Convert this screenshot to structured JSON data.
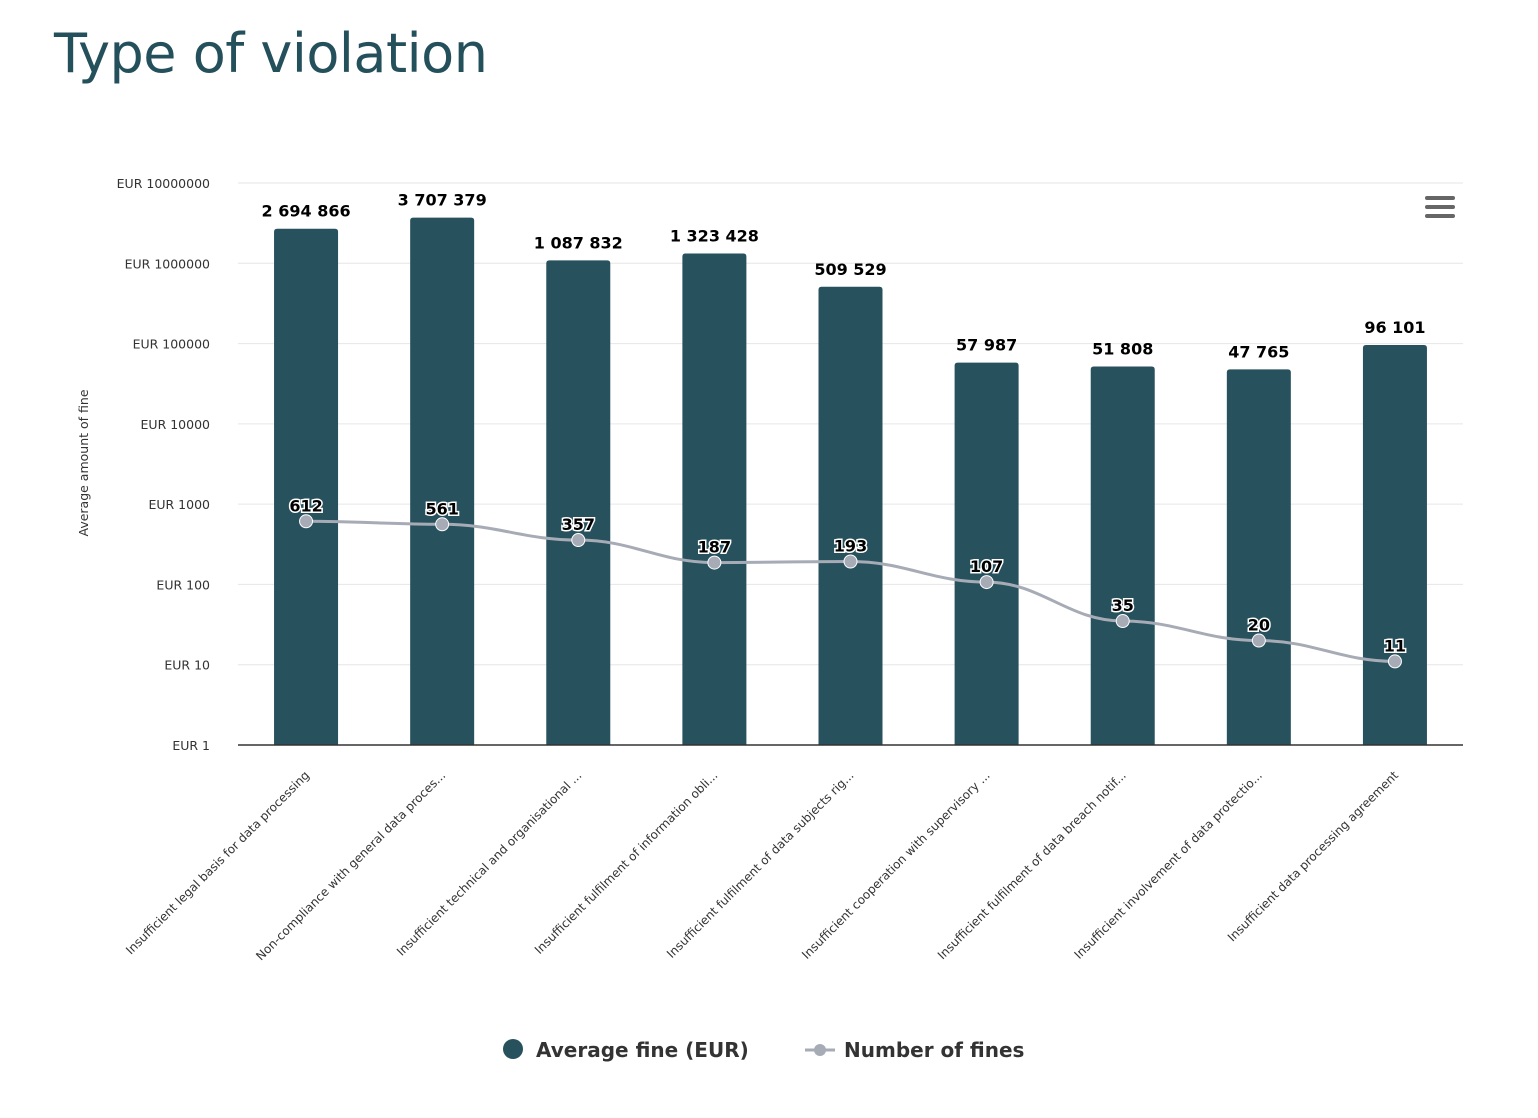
{
  "title": "Type of violation",
  "menu_icon": "hamburger-menu-icon",
  "chart_data": {
    "type": "bar+line",
    "title": "Type of violation",
    "ylabel": "Average amount of fine",
    "yscale": "log",
    "ylim": [
      1,
      10000000
    ],
    "yticks": [
      "EUR 1",
      "EUR 10",
      "EUR 100",
      "EUR 1000",
      "EUR 10000",
      "EUR 100000",
      "EUR 1000000",
      "EUR 10000000"
    ],
    "grid": true,
    "legend_position": "bottom",
    "categories": [
      "Insufficient legal basis for data processing",
      "Non-compliance with general data proces...",
      "Insufficient technical and organisational ...",
      "Insufficient fulfilment of information obli...",
      "Insufficient fulfilment of data subjects rig...",
      "Insufficient cooperation with supervisory ...",
      "Insufficient fulfilment of data breach notif...",
      "Insufficient involvement of data protectio...",
      "Insufficient data processing agreement"
    ],
    "series": [
      {
        "name": "Average fine (EUR)",
        "type": "bar",
        "color": "#26515d",
        "values": [
          2694866,
          3707379,
          1087832,
          1323428,
          509529,
          57987,
          51808,
          47765,
          96101
        ],
        "labels": [
          "2 694 866",
          "3 707 379",
          "1 087 832",
          "1 323 428",
          "509 529",
          "57 987",
          "51 808",
          "47 765",
          "96 101"
        ]
      },
      {
        "name": "Number of fines",
        "type": "line",
        "color": "#a6abb5",
        "values": [
          612,
          561,
          357,
          187,
          193,
          107,
          35,
          20,
          11
        ],
        "labels": [
          "612",
          "561",
          "357",
          "187",
          "193",
          "107",
          "35",
          "20",
          "11"
        ]
      }
    ]
  }
}
